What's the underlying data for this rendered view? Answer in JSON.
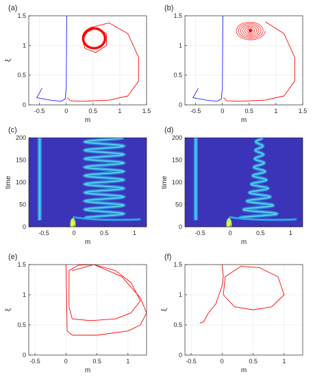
{
  "chart_data": [
    {
      "panel": "(a)",
      "type": "line",
      "xlabel": "m",
      "ylabel": "ξ",
      "xlim": [
        -0.7,
        1.5
      ],
      "ylim": [
        0,
        1.5
      ],
      "xticks": [
        "-0.5",
        "0",
        "0.5",
        "1",
        "1.5"
      ],
      "yticks": [
        "0",
        "0.5",
        "1",
        "1.5"
      ],
      "grid": true,
      "series": [
        {
          "color": "#1f1fff",
          "points": [
            [
              -0.45,
              0.28
            ],
            [
              -0.5,
              0.2
            ],
            [
              -0.55,
              0.12
            ],
            [
              -0.3,
              0.08
            ],
            [
              -0.1,
              0.06
            ],
            [
              -0.02,
              0.1
            ],
            [
              0,
              0.3
            ],
            [
              0.005,
              1.0
            ],
            [
              0.008,
              1.5
            ]
          ]
        },
        {
          "color": "#ff0000",
          "points": [
            [
              0.02,
              0.12
            ],
            [
              0.08,
              0.07
            ],
            [
              0.3,
              0.06
            ],
            [
              0.8,
              0.08
            ],
            [
              1.15,
              0.15
            ],
            [
              1.35,
              0.4
            ],
            [
              1.35,
              0.8
            ],
            [
              1.15,
              1.2
            ],
            [
              0.8,
              1.38
            ],
            [
              0.45,
              1.3
            ],
            [
              0.3,
              1.1
            ],
            [
              0.35,
              0.95
            ],
            [
              0.55,
              0.88
            ],
            [
              0.75,
              1.0
            ],
            [
              0.75,
              1.2
            ],
            [
              0.55,
              1.3
            ],
            [
              0.35,
              1.2
            ],
            [
              0.32,
              1.05
            ]
          ]
        },
        {
          "color": "#ff0000",
          "cycle": true,
          "center": [
            0.52,
            1.12
          ],
          "radii": [
            0.22,
            0.18
          ]
        }
      ]
    },
    {
      "panel": "(b)",
      "type": "line",
      "xlabel": "m",
      "ylabel": "",
      "xlim": [
        -0.7,
        1.5
      ],
      "ylim": [
        0,
        1.5
      ],
      "xticks": [
        "-0.5",
        "0",
        "0.5",
        "1",
        "1.5"
      ],
      "yticks": [
        "0",
        "0.5",
        "1",
        "1.5"
      ],
      "grid": true,
      "series": [
        {
          "color": "#1f1fff",
          "points": [
            [
              -0.45,
              0.28
            ],
            [
              -0.5,
              0.2
            ],
            [
              -0.55,
              0.12
            ],
            [
              -0.3,
              0.08
            ],
            [
              -0.1,
              0.06
            ],
            [
              -0.02,
              0.1
            ],
            [
              0,
              0.3
            ],
            [
              0.005,
              1.0
            ],
            [
              0.008,
              1.5
            ]
          ]
        },
        {
          "color": "#ff0000",
          "points": [
            [
              0.02,
              0.12
            ],
            [
              0.08,
              0.07
            ],
            [
              0.3,
              0.06
            ],
            [
              0.8,
              0.08
            ],
            [
              1.15,
              0.15
            ],
            [
              1.35,
              0.4
            ],
            [
              1.35,
              0.8
            ],
            [
              1.15,
              1.2
            ],
            [
              0.8,
              1.4
            ]
          ]
        },
        {
          "color": "#ff0000",
          "spiral": true,
          "center": [
            0.52,
            1.25
          ],
          "radii": [
            0.28,
            0.16
          ],
          "turns": 7
        }
      ]
    },
    {
      "panel": "(c)",
      "type": "heatmap",
      "xlabel": "m",
      "ylabel": "time",
      "xlim": [
        -0.75,
        1.2
      ],
      "ylim": [
        0,
        200
      ],
      "xticks": [
        "-0.5",
        "0",
        "0.5",
        "1"
      ],
      "yticks": [
        "0",
        "50",
        "100",
        "150",
        "200"
      ],
      "ridges": [
        {
          "kind": "stationary",
          "x": -0.57,
          "from": 15,
          "to": 200
        },
        {
          "kind": "oscillating",
          "center": 0.5,
          "amplitude": 0.32,
          "period": 19,
          "from": 20,
          "to": 200
        },
        {
          "kind": "peak",
          "x": -0.02,
          "time": 6
        }
      ]
    },
    {
      "panel": "(d)",
      "type": "heatmap",
      "xlabel": "m",
      "ylabel": "time",
      "xlim": [
        -0.75,
        1.2
      ],
      "ylim": [
        0,
        200
      ],
      "xticks": [
        "-0.5",
        "0",
        "0.5",
        "1"
      ],
      "yticks": [
        "0",
        "50",
        "100",
        "150",
        "200"
      ],
      "ridges": [
        {
          "kind": "stationary",
          "x": -0.57,
          "from": 15,
          "to": 200
        },
        {
          "kind": "damped",
          "center": 0.48,
          "amplitude": 0.3,
          "period": 19,
          "from": 20,
          "to": 200
        },
        {
          "kind": "peak",
          "x": -0.02,
          "time": 6
        }
      ]
    },
    {
      "panel": "(e)",
      "type": "line",
      "xlabel": "m",
      "ylabel": "ξ",
      "xlim": [
        -0.6,
        1.3
      ],
      "ylim": [
        0,
        1.5
      ],
      "xticks": [
        "-0.5",
        "0",
        "0.5",
        "1"
      ],
      "yticks": [
        "0",
        "0.5",
        "1",
        "1.5"
      ],
      "grid": true,
      "series": [
        {
          "color": "#ff0000",
          "points": [
            [
              0,
              1.5
            ],
            [
              0.02,
              0.4
            ],
            [
              0.1,
              0.33
            ],
            [
              0.5,
              0.33
            ],
            [
              1.0,
              0.4
            ],
            [
              1.2,
              0.5
            ],
            [
              1.3,
              0.7
            ],
            [
              1.2,
              0.95
            ],
            [
              0.9,
              1.3
            ],
            [
              0.45,
              1.5
            ],
            [
              0.1,
              1.4
            ]
          ]
        },
        {
          "color": "#ff0000",
          "loop": true,
          "points": [
            [
              0.05,
              1.4
            ],
            [
              0.2,
              1.49
            ],
            [
              0.45,
              1.5
            ],
            [
              0.8,
              1.4
            ],
            [
              1.05,
              1.2
            ],
            [
              1.2,
              0.9
            ],
            [
              1.05,
              0.7
            ],
            [
              0.8,
              0.6
            ],
            [
              0.4,
              0.57
            ],
            [
              0.1,
              0.6
            ],
            [
              0.05,
              0.8
            ],
            [
              0.05,
              1.1
            ]
          ]
        }
      ]
    },
    {
      "panel": "(f)",
      "type": "line",
      "xlabel": "m",
      "ylabel": "ξ",
      "xlim": [
        -0.6,
        1.3
      ],
      "ylim": [
        0,
        1.5
      ],
      "xticks": [
        "-0.5",
        "0",
        "0.5",
        "1"
      ],
      "yticks": [
        "0",
        "0.5",
        "1",
        "1.5"
      ],
      "grid": true,
      "series": [
        {
          "color": "#ff0000",
          "points": [
            [
              -0.36,
              0.53
            ],
            [
              -0.3,
              0.55
            ],
            [
              -0.22,
              0.7
            ],
            [
              -0.1,
              0.85
            ],
            [
              -0.05,
              1.0
            ],
            [
              0,
              1.15
            ],
            [
              0.02,
              1.3
            ],
            [
              0,
              1.5
            ]
          ]
        },
        {
          "color": "#ff0000",
          "loop": true,
          "points": [
            [
              0.05,
              1.3
            ],
            [
              0.3,
              1.47
            ],
            [
              0.6,
              1.45
            ],
            [
              0.9,
              1.3
            ],
            [
              1.0,
              1.0
            ],
            [
              0.8,
              0.8
            ],
            [
              0.5,
              0.75
            ],
            [
              0.2,
              0.8
            ],
            [
              0.02,
              1.0
            ]
          ]
        }
      ]
    }
  ]
}
